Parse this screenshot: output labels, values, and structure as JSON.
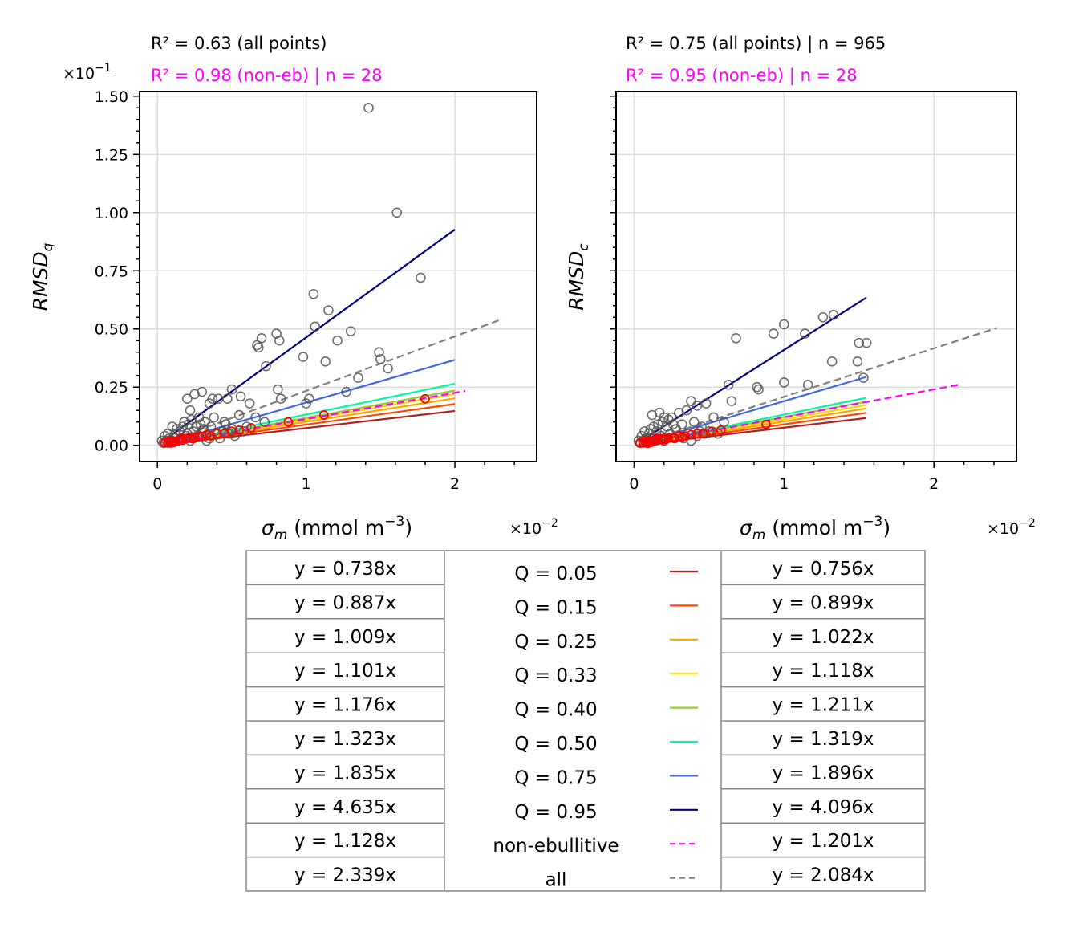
{
  "chart_data": [
    {
      "type": "scatter",
      "ylabel": "RMSD_q",
      "xlabel": "σ_m (mmol m^-3)",
      "x_scale_label": "×10^-2",
      "y_scale_label": "×10^-1",
      "annotation_all": "R² = 0.63 (all points)",
      "annotation_non_eb": "R² = 0.98 (non-eb) | n = 28",
      "xlim": [
        -0.12,
        2.55
      ],
      "ylim": [
        -0.07,
        1.52
      ],
      "xticks": [
        0,
        1,
        2
      ],
      "yticks": [
        0.0,
        0.25,
        0.5,
        0.75,
        1.0,
        1.25,
        1.5
      ],
      "ytick_labels": [
        "0.00",
        "0.25",
        "0.50",
        "0.75",
        "1.00",
        "1.25",
        "1.50"
      ],
      "grid": true,
      "points_all": [
        [
          1.42,
          1.45
        ],
        [
          1.61,
          1.0
        ],
        [
          1.77,
          0.72
        ],
        [
          1.05,
          0.65
        ],
        [
          1.15,
          0.58
        ],
        [
          0.8,
          0.48
        ],
        [
          0.82,
          0.45
        ],
        [
          0.7,
          0.46
        ],
        [
          0.68,
          0.42
        ],
        [
          0.67,
          0.43
        ],
        [
          1.3,
          0.49
        ],
        [
          1.21,
          0.45
        ],
        [
          1.49,
          0.4
        ],
        [
          1.5,
          0.37
        ],
        [
          1.55,
          0.33
        ],
        [
          1.06,
          0.51
        ],
        [
          0.98,
          0.38
        ],
        [
          1.13,
          0.36
        ],
        [
          0.73,
          0.34
        ],
        [
          1.35,
          0.29
        ],
        [
          1.27,
          0.23
        ],
        [
          1.02,
          0.2
        ],
        [
          1.0,
          0.18
        ],
        [
          0.81,
          0.24
        ],
        [
          0.83,
          0.2
        ],
        [
          0.56,
          0.21
        ],
        [
          0.62,
          0.18
        ],
        [
          0.47,
          0.2
        ],
        [
          0.37,
          0.2
        ],
        [
          0.41,
          0.2
        ],
        [
          0.25,
          0.22
        ],
        [
          0.3,
          0.23
        ],
        [
          0.35,
          0.18
        ],
        [
          0.2,
          0.2
        ],
        [
          0.22,
          0.15
        ],
        [
          0.5,
          0.24
        ],
        [
          0.66,
          0.12
        ],
        [
          0.72,
          0.1
        ],
        [
          0.55,
          0.13
        ],
        [
          0.45,
          0.1
        ],
        [
          0.38,
          0.12
        ],
        [
          0.32,
          0.1
        ],
        [
          0.28,
          0.12
        ],
        [
          0.26,
          0.08
        ],
        [
          0.24,
          0.06
        ],
        [
          0.18,
          0.1
        ],
        [
          0.15,
          0.06
        ],
        [
          0.12,
          0.05
        ],
        [
          0.1,
          0.08
        ],
        [
          0.08,
          0.03
        ],
        [
          0.06,
          0.02
        ],
        [
          0.05,
          0.04
        ],
        [
          0.04,
          0.01
        ],
        [
          0.03,
          0.02
        ],
        [
          0.2,
          0.05
        ],
        [
          0.3,
          0.06
        ],
        [
          0.4,
          0.05
        ],
        [
          0.5,
          0.07
        ],
        [
          0.6,
          0.08
        ],
        [
          0.35,
          0.03
        ],
        [
          0.27,
          0.04
        ],
        [
          0.16,
          0.03
        ],
        [
          0.14,
          0.02
        ],
        [
          0.09,
          0.01
        ],
        [
          0.11,
          0.03
        ],
        [
          0.22,
          0.02
        ],
        [
          0.33,
          0.02
        ],
        [
          0.42,
          0.03
        ],
        [
          0.19,
          0.04
        ],
        [
          0.07,
          0.05
        ],
        [
          0.13,
          0.07
        ],
        [
          0.17,
          0.08
        ],
        [
          0.21,
          0.09
        ],
        [
          0.23,
          0.11
        ],
        [
          0.29,
          0.09
        ],
        [
          0.31,
          0.07
        ],
        [
          0.36,
          0.08
        ],
        [
          0.44,
          0.06
        ],
        [
          0.48,
          0.05
        ],
        [
          0.52,
          0.04
        ],
        [
          0.58,
          0.06
        ],
        [
          0.46,
          0.09
        ]
      ],
      "points_non_eb": [
        [
          0.05,
          0.01
        ],
        [
          0.07,
          0.01
        ],
        [
          0.09,
          0.015
        ],
        [
          0.1,
          0.02
        ],
        [
          0.12,
          0.018
        ],
        [
          0.14,
          0.02
        ],
        [
          0.15,
          0.025
        ],
        [
          0.17,
          0.022
        ],
        [
          0.19,
          0.028
        ],
        [
          0.2,
          0.03
        ],
        [
          0.22,
          0.03
        ],
        [
          0.25,
          0.035
        ],
        [
          0.28,
          0.04
        ],
        [
          0.3,
          0.038
        ],
        [
          0.33,
          0.045
        ],
        [
          0.36,
          0.04
        ],
        [
          0.4,
          0.05
        ],
        [
          0.45,
          0.05
        ],
        [
          0.5,
          0.06
        ],
        [
          0.55,
          0.065
        ],
        [
          0.63,
          0.075
        ],
        [
          0.88,
          0.1
        ],
        [
          1.12,
          0.13
        ],
        [
          1.8,
          0.2
        ],
        [
          0.08,
          0.02
        ],
        [
          0.11,
          0.012
        ],
        [
          0.16,
          0.03
        ],
        [
          0.24,
          0.028
        ]
      ],
      "fits": [
        {
          "slope": 0.738,
          "x_end": 2.0
        },
        {
          "slope": 0.887,
          "x_end": 2.0
        },
        {
          "slope": 1.009,
          "x_end": 2.0
        },
        {
          "slope": 1.101,
          "x_end": 2.0
        },
        {
          "slope": 1.176,
          "x_end": 2.0
        },
        {
          "slope": 1.323,
          "x_end": 2.0
        },
        {
          "slope": 1.835,
          "x_end": 2.0
        },
        {
          "slope": 4.635,
          "x_end": 2.0
        },
        {
          "slope": 1.128,
          "x_end": 2.07
        },
        {
          "slope": 2.339,
          "x_end": 2.32
        }
      ]
    },
    {
      "type": "scatter",
      "ylabel": "RMSD_c",
      "xlabel": "σ_m (mmol m^-3)",
      "x_scale_label": "×10^-2",
      "annotation_all": "R² = 0.75 (all points) | n = 965",
      "annotation_non_eb": "R² = 0.95 (non-eb) | n = 28",
      "xlim": [
        -0.12,
        2.55
      ],
      "ylim": [
        -0.07,
        1.52
      ],
      "xticks": [
        0,
        1,
        2
      ],
      "grid": true,
      "points_all": [
        [
          1.33,
          0.56
        ],
        [
          1.26,
          0.55
        ],
        [
          1.0,
          0.52
        ],
        [
          0.93,
          0.48
        ],
        [
          1.14,
          0.48
        ],
        [
          0.68,
          0.46
        ],
        [
          1.5,
          0.44
        ],
        [
          1.55,
          0.44
        ],
        [
          1.49,
          0.36
        ],
        [
          1.32,
          0.36
        ],
        [
          1.53,
          0.29
        ],
        [
          1.0,
          0.27
        ],
        [
          1.16,
          0.26
        ],
        [
          0.82,
          0.25
        ],
        [
          0.83,
          0.24
        ],
        [
          0.63,
          0.26
        ],
        [
          0.48,
          0.18
        ],
        [
          0.38,
          0.19
        ],
        [
          0.42,
          0.17
        ],
        [
          0.35,
          0.15
        ],
        [
          0.3,
          0.14
        ],
        [
          0.25,
          0.12
        ],
        [
          0.17,
          0.14
        ],
        [
          0.2,
          0.12
        ],
        [
          0.12,
          0.13
        ],
        [
          0.65,
          0.19
        ],
        [
          0.53,
          0.12
        ],
        [
          0.6,
          0.1
        ],
        [
          0.45,
          0.08
        ],
        [
          0.4,
          0.1
        ],
        [
          0.32,
          0.09
        ],
        [
          0.28,
          0.07
        ],
        [
          0.22,
          0.08
        ],
        [
          0.15,
          0.06
        ],
        [
          0.1,
          0.05
        ],
        [
          0.08,
          0.03
        ],
        [
          0.06,
          0.02
        ],
        [
          0.04,
          0.01
        ],
        [
          0.03,
          0.02
        ],
        [
          0.05,
          0.04
        ],
        [
          0.12,
          0.03
        ],
        [
          0.18,
          0.04
        ],
        [
          0.24,
          0.05
        ],
        [
          0.3,
          0.04
        ],
        [
          0.36,
          0.05
        ],
        [
          0.42,
          0.04
        ],
        [
          0.5,
          0.06
        ],
        [
          0.56,
          0.05
        ],
        [
          0.2,
          0.02
        ],
        [
          0.14,
          0.02
        ],
        [
          0.09,
          0.01
        ],
        [
          0.27,
          0.03
        ],
        [
          0.33,
          0.03
        ],
        [
          0.38,
          0.02
        ],
        [
          0.11,
          0.07
        ],
        [
          0.16,
          0.09
        ],
        [
          0.19,
          0.1
        ],
        [
          0.23,
          0.11
        ],
        [
          0.26,
          0.09
        ],
        [
          0.44,
          0.06
        ],
        [
          0.47,
          0.05
        ],
        [
          0.07,
          0.06
        ],
        [
          0.13,
          0.08
        ]
      ],
      "points_non_eb": [
        [
          0.04,
          0.01
        ],
        [
          0.06,
          0.01
        ],
        [
          0.08,
          0.015
        ],
        [
          0.1,
          0.02
        ],
        [
          0.12,
          0.02
        ],
        [
          0.14,
          0.025
        ],
        [
          0.16,
          0.022
        ],
        [
          0.18,
          0.028
        ],
        [
          0.2,
          0.03
        ],
        [
          0.23,
          0.03
        ],
        [
          0.26,
          0.035
        ],
        [
          0.3,
          0.04
        ],
        [
          0.34,
          0.04
        ],
        [
          0.38,
          0.045
        ],
        [
          0.42,
          0.05
        ],
        [
          0.46,
          0.05
        ],
        [
          0.52,
          0.06
        ],
        [
          0.58,
          0.065
        ],
        [
          0.88,
          0.09
        ],
        [
          0.07,
          0.02
        ],
        [
          0.11,
          0.012
        ],
        [
          0.15,
          0.03
        ],
        [
          0.21,
          0.025
        ],
        [
          0.27,
          0.03
        ],
        [
          0.32,
          0.035
        ],
        [
          0.09,
          0.008
        ],
        [
          0.13,
          0.018
        ],
        [
          0.19,
          0.022
        ]
      ],
      "fits": [
        {
          "slope": 0.756,
          "x_end": 1.55
        },
        {
          "slope": 0.899,
          "x_end": 1.55
        },
        {
          "slope": 1.022,
          "x_end": 1.55
        },
        {
          "slope": 1.118,
          "x_end": 1.55
        },
        {
          "slope": 1.211,
          "x_end": 1.55
        },
        {
          "slope": 1.319,
          "x_end": 1.55
        },
        {
          "slope": 1.896,
          "x_end": 1.55
        },
        {
          "slope": 4.096,
          "x_end": 1.55
        },
        {
          "slope": 1.201,
          "x_end": 2.18
        },
        {
          "slope": 2.084,
          "x_end": 2.42
        }
      ]
    }
  ],
  "series": [
    {
      "name": "Q = 0.05",
      "color": "#b22222",
      "dashed": false
    },
    {
      "name": "Q = 0.15",
      "color": "#ff4500",
      "dashed": false
    },
    {
      "name": "Q = 0.25",
      "color": "#ffa500",
      "dashed": false
    },
    {
      "name": "Q = 0.33",
      "color": "#ffd700",
      "dashed": false
    },
    {
      "name": "Q = 0.40",
      "color": "#9acd32",
      "dashed": false
    },
    {
      "name": "Q = 0.50",
      "color": "#00fa9a",
      "dashed": false
    },
    {
      "name": "Q = 0.75",
      "color": "#4169e1",
      "dashed": false
    },
    {
      "name": "Q = 0.95",
      "color": "#000080",
      "dashed": false
    },
    {
      "name": "non-ebullitive",
      "color": "#ff00ff",
      "dashed": true
    },
    {
      "name": "all",
      "color": "#808080",
      "dashed": true
    }
  ],
  "legend_table": {
    "rows": [
      {
        "left": "y = 0.738x",
        "label": "Q = 0.05",
        "right": "y = 0.756x"
      },
      {
        "left": "y = 0.887x",
        "label": "Q = 0.15",
        "right": "y = 0.899x"
      },
      {
        "left": "y = 1.009x",
        "label": "Q = 0.25",
        "right": "y = 1.022x"
      },
      {
        "left": "y = 1.101x",
        "label": "Q = 0.33",
        "right": "y = 1.118x"
      },
      {
        "left": "y = 1.176x",
        "label": "Q = 0.40",
        "right": "y = 1.211x"
      },
      {
        "left": "y = 1.323x",
        "label": "Q = 0.50",
        "right": "y = 1.319x"
      },
      {
        "left": "y = 1.835x",
        "label": "Q = 0.75",
        "right": "y = 1.896x"
      },
      {
        "left": "y = 4.635x",
        "label": "Q = 0.95",
        "right": "y = 4.096x"
      },
      {
        "left": "y = 1.128x",
        "label": "non-ebullitive",
        "right": "y = 1.201x"
      },
      {
        "left": "y = 2.339x",
        "label": "all",
        "right": "y = 2.084x"
      }
    ]
  },
  "colors": {
    "points_all": "#555555",
    "points_non_eb": "#ff0000",
    "annotation_non_eb": "#ff00ff",
    "grid": "#dddddd",
    "table_border": "#888888"
  }
}
